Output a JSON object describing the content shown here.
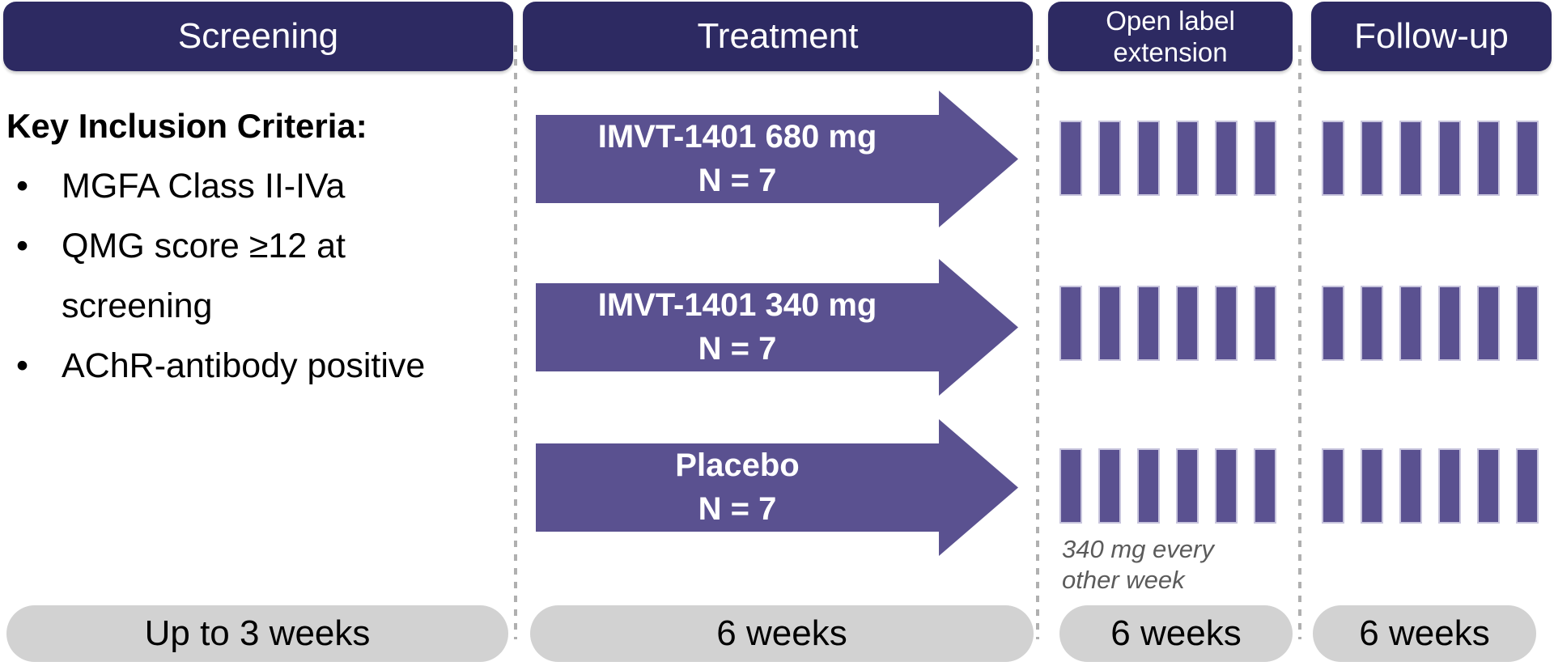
{
  "colors": {
    "header_bg": "#2d2a62",
    "header_text": "#ffffff",
    "arm_fill": "#5a5190",
    "bar_fill": "#5a5190",
    "bar_border": "#c8c5dd",
    "pill_bg": "#d2d2d2",
    "divider": "#b0b0b0",
    "note_text": "#5b5b5b",
    "body_text": "#000000"
  },
  "phases": {
    "screening": {
      "title": "Screening",
      "duration": "Up to 3 weeks"
    },
    "treatment": {
      "title": "Treatment",
      "duration": "6 weeks"
    },
    "open_label_extension": {
      "title_lines": [
        "Open label",
        "extension"
      ],
      "duration": "6 weeks",
      "note": "340 mg every other week"
    },
    "follow_up": {
      "title": "Follow-up",
      "duration": "6 weeks"
    }
  },
  "inclusion": {
    "heading": "Key Inclusion Criteria:",
    "items": [
      "MGFA Class II-IVa",
      "QMG score ≥12 at screening",
      "AChR-antibody positive"
    ]
  },
  "arms": [
    {
      "label": "IMVT-1401 680 mg",
      "n": "N = 7"
    },
    {
      "label": "IMVT-1401 340 mg",
      "n": "N = 7"
    },
    {
      "label": "Placebo",
      "n": "N = 7"
    }
  ],
  "schedule": {
    "doses_per_period": 6
  }
}
